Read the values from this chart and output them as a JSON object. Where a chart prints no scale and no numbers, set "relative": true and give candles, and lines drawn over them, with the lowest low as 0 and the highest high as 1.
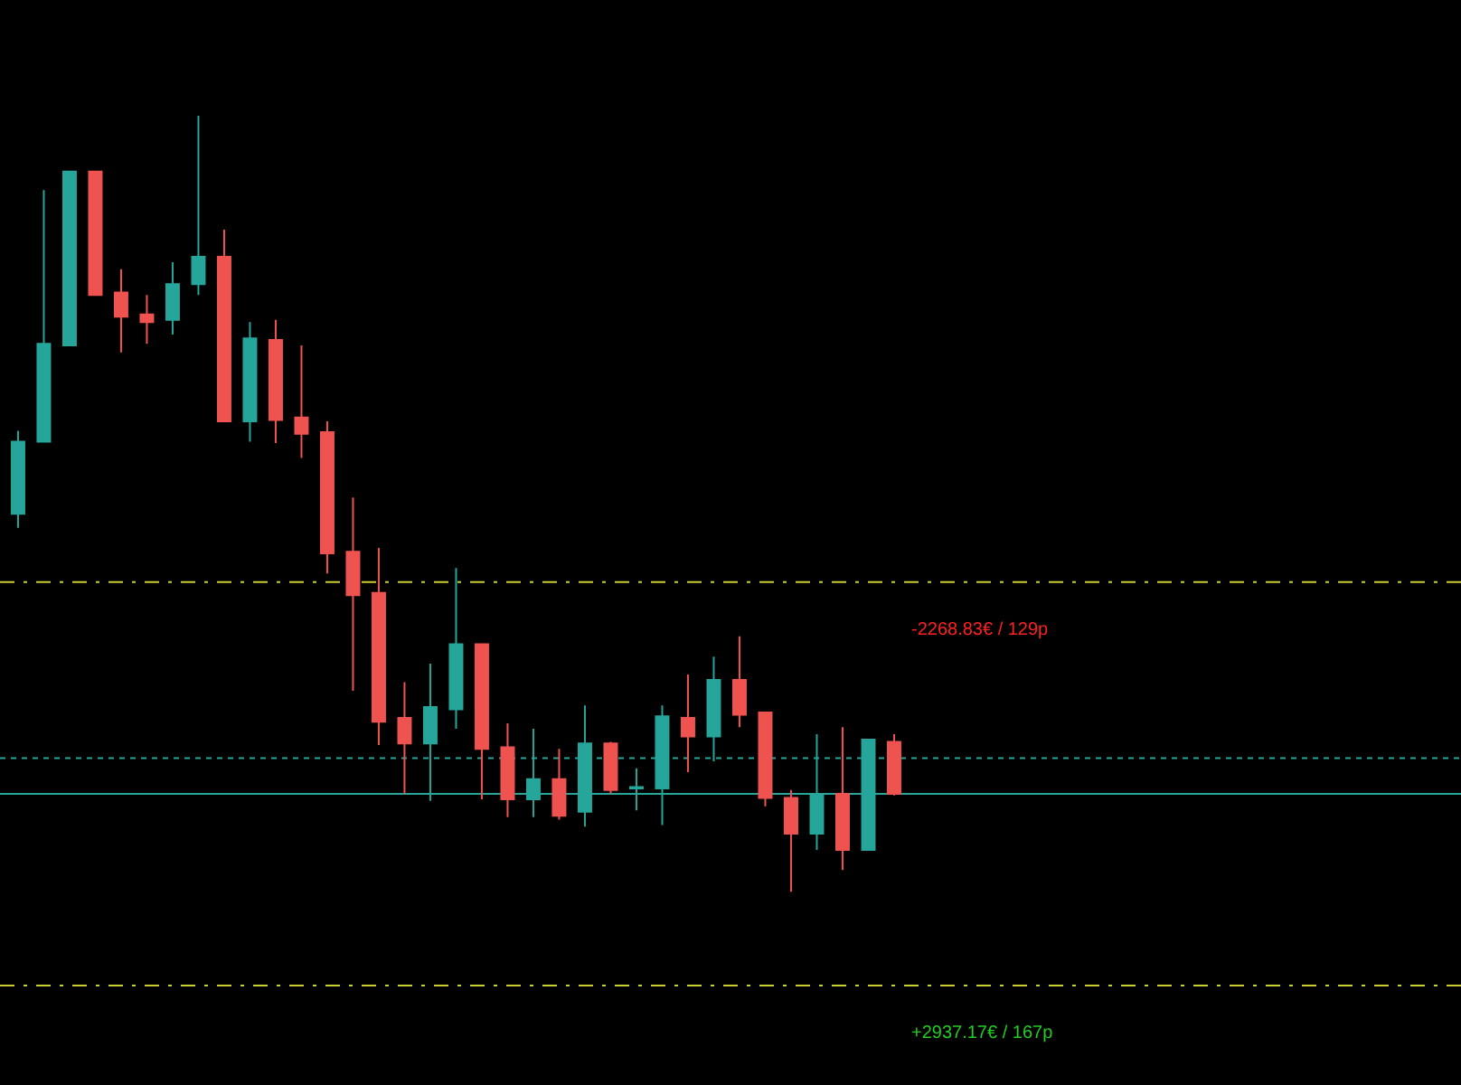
{
  "chart_data": {
    "type": "candlestick",
    "relative": true,
    "categories": [
      null,
      null,
      null,
      null,
      null,
      null,
      null,
      null,
      null,
      null,
      null,
      null,
      null,
      null,
      null,
      null,
      null,
      null,
      null,
      null,
      null,
      null,
      null,
      null,
      null,
      null,
      null,
      null,
      null,
      null,
      null,
      null,
      null,
      null,
      null
    ],
    "ohlc": [
      [
        0.487,
        0.594,
        0.469,
        0.58
      ],
      [
        0.58,
        0.904,
        0.58,
        0.706
      ],
      [
        0.704,
        0.928,
        0.704,
        0.928
      ],
      [
        0.928,
        0.928,
        0.769,
        0.769
      ],
      [
        0.772,
        0.802,
        0.695,
        0.741
      ],
      [
        0.744,
        0.769,
        0.706,
        0.734
      ],
      [
        0.737,
        0.811,
        0.718,
        0.783
      ],
      [
        0.783,
        1.0,
        0.769,
        0.818
      ],
      [
        0.818,
        0.853,
        0.606,
        0.606
      ],
      [
        0.606,
        0.734,
        0.58,
        0.713
      ],
      [
        0.711,
        0.737,
        0.578,
        0.608
      ],
      [
        0.611,
        0.704,
        0.559,
        0.59
      ],
      [
        0.592,
        0.606,
        0.41,
        0.436
      ],
      [
        0.438,
        0.508,
        0.259,
        0.382
      ],
      [
        0.385,
        0.443,
        0.189,
        0.219
      ],
      [
        0.224,
        0.27,
        0.126,
        0.191
      ],
      [
        0.191,
        0.294,
        0.117,
        0.238
      ],
      [
        0.235,
        0.417,
        0.21,
        0.319
      ],
      [
        0.319,
        0.319,
        0.119,
        0.184
      ],
      [
        0.186,
        0.217,
        0.096,
        0.119
      ],
      [
        0.119,
        0.21,
        0.096,
        0.145
      ],
      [
        0.145,
        0.184,
        0.093,
        0.098
      ],
      [
        0.103,
        0.24,
        0.084,
        0.191
      ],
      [
        0.191,
        0.193,
        0.126,
        0.131
      ],
      [
        0.133,
        0.159,
        0.105,
        0.135
      ],
      [
        0.133,
        0.24,
        0.086,
        0.226
      ],
      [
        0.224,
        0.28,
        0.154,
        0.2
      ],
      [
        0.2,
        0.303,
        0.168,
        0.273
      ],
      [
        0.273,
        0.329,
        0.212,
        0.228
      ],
      [
        0.231,
        0.231,
        0.11,
        0.121
      ],
      [
        0.121,
        0.131,
        0.0,
        0.075
      ],
      [
        0.075,
        0.203,
        0.054,
        0.126
      ],
      [
        0.126,
        0.212,
        0.028,
        0.054
      ],
      [
        0.054,
        0.196,
        0.054,
        0.196
      ],
      [
        0.193,
        0.203,
        0.124,
        0.126
      ]
    ],
    "colors": [
      "#26a69a",
      "#26a69a",
      "#26a69a",
      "#ef5350",
      "#ef5350",
      "#ef5350",
      "#26a69a",
      "#26a69a",
      "#ef5350",
      "#26a69a",
      "#ef5350",
      "#ef5350",
      "#ef5350",
      "#ef5350",
      "#ef5350",
      "#ef5350",
      "#26a69a",
      "#26a69a",
      "#ef5350",
      "#ef5350",
      "#26a69a",
      "#ef5350",
      "#26a69a",
      "#ef5350",
      "#26a69a",
      "#26a69a",
      "#ef5350",
      "#26a69a",
      "#ef5350",
      "#ef5350",
      "#ef5350",
      "#26a69a",
      "#ef5350",
      "#26a69a",
      "#ef5350"
    ],
    "ref_lines": [
      {
        "axis": "y",
        "value": 0.399,
        "color": "#cccc33",
        "line_style": "dashdot",
        "label": "-2268.83€ / 129p"
      },
      {
        "axis": "y",
        "value": 0.172,
        "color": "#26a69a",
        "line_style": "dashed"
      },
      {
        "axis": "y",
        "value": 0.126,
        "color": "#26a69a",
        "line_style": "solid"
      },
      {
        "axis": "y",
        "value": -0.121,
        "color": "#cccc33",
        "line_style": "dashdot",
        "label": "+2937.17€ / 167p"
      }
    ]
  }
}
